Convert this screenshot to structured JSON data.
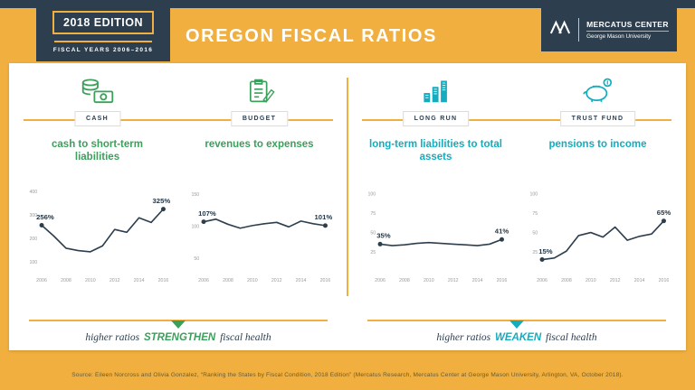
{
  "colors": {
    "gold": "#F0AF3F",
    "navy": "#2D3E4E",
    "green": "#3BA05B",
    "teal": "#14ACBE",
    "line": "#2D3E4E"
  },
  "header": {
    "edition_badge": "2018 EDITION",
    "fiscal_years": "FISCAL YEARS 2006–2016",
    "title": "OREGON FISCAL RATIOS",
    "logo_title": "MERCATUS CENTER",
    "logo_subtitle": "George Mason University"
  },
  "panels": [
    {
      "category": "CASH",
      "title": "cash to short-term liabilities",
      "icon": "cash-coins-icon",
      "accent": "green"
    },
    {
      "category": "BUDGET",
      "title": "revenues to expenses",
      "icon": "budget-clipboard-icon",
      "accent": "green"
    },
    {
      "category": "LONG RUN",
      "title": "long-term liabilities to total assets",
      "icon": "buildings-bars-icon",
      "accent": "teal"
    },
    {
      "category": "TRUST FUND",
      "title": "pensions to income",
      "icon": "piggy-bank-icon",
      "accent": "teal"
    }
  ],
  "chart_data": [
    {
      "type": "line",
      "title": "cash to short-term liabilities",
      "x": [
        2006,
        2007,
        2008,
        2009,
        2010,
        2011,
        2012,
        2013,
        2014,
        2015,
        2016
      ],
      "values": [
        256,
        210,
        158,
        148,
        143,
        168,
        238,
        226,
        288,
        268,
        325
      ],
      "yticks": [
        100,
        200,
        300,
        400
      ],
      "xticks": [
        2006,
        2008,
        2010,
        2012,
        2014,
        2016
      ],
      "ylim": [
        60,
        430
      ],
      "first_label": "256%",
      "last_label": "325%"
    },
    {
      "type": "line",
      "title": "revenues to expenses",
      "x": [
        2006,
        2007,
        2008,
        2009,
        2010,
        2011,
        2012,
        2013,
        2014,
        2015,
        2016
      ],
      "values": [
        107,
        111,
        103,
        97,
        101,
        104,
        106,
        99,
        108,
        104,
        101
      ],
      "yticks": [
        50,
        100,
        150
      ],
      "xticks": [
        2006,
        2008,
        2010,
        2012,
        2014,
        2016
      ],
      "ylim": [
        30,
        165
      ],
      "first_label": "107%",
      "last_label": "101%"
    },
    {
      "type": "line",
      "title": "long-term liabilities to total assets",
      "x": [
        2006,
        2007,
        2008,
        2009,
        2010,
        2011,
        2012,
        2013,
        2014,
        2015,
        2016
      ],
      "values": [
        35,
        33,
        34,
        36,
        37,
        36,
        35,
        34,
        33,
        35,
        41
      ],
      "yticks": [
        25,
        50,
        75,
        100
      ],
      "xticks": [
        2006,
        2008,
        2010,
        2012,
        2014,
        2016
      ],
      "ylim": [
        0,
        112
      ],
      "first_label": "35%",
      "last_label": "41%"
    },
    {
      "type": "line",
      "title": "pensions to income",
      "x": [
        2006,
        2007,
        2008,
        2009,
        2010,
        2011,
        2012,
        2013,
        2014,
        2015,
        2016
      ],
      "values": [
        15,
        17,
        26,
        46,
        50,
        44,
        57,
        40,
        45,
        48,
        65
      ],
      "yticks": [
        25,
        50,
        75,
        100
      ],
      "xticks": [
        2006,
        2008,
        2010,
        2012,
        2014,
        2016
      ],
      "ylim": [
        0,
        112
      ],
      "first_label": "15%",
      "last_label": "65%"
    }
  ],
  "footer": {
    "strengthen_prefix": "higher ratios",
    "strengthen_word": "STRENGTHEN",
    "strengthen_suffix": "fiscal health",
    "weaken_prefix": "higher ratios",
    "weaken_word": "WEAKEN",
    "weaken_suffix": "fiscal health",
    "source": "Source: Eileen Norcross and Olivia Gonzalez, “Ranking the States by Fiscal Condition, 2018 Edition” (Mercatus Research, Mercatus Center at George Mason University, Arlington, VA, October 2018)."
  }
}
